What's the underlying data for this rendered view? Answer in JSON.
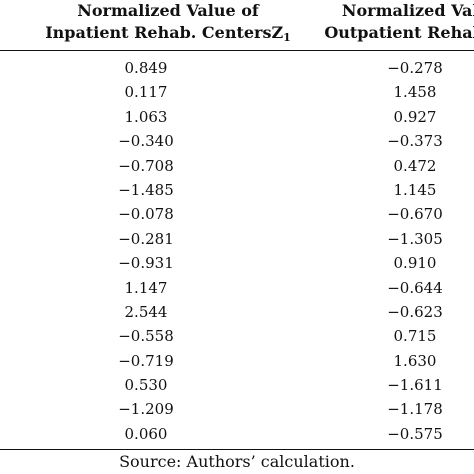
{
  "table": {
    "headers": [
      {
        "line1": "Normalized Value of",
        "line2": "Inpatient Rehab. Centers",
        "symbol": "Z",
        "subscript": "1"
      },
      {
        "line1": "Normalized Valu",
        "line2": "Outpatient Rehab. C",
        "symbol": "",
        "subscript": ""
      }
    ],
    "rows": [
      [
        "0.849",
        "−0.278"
      ],
      [
        "0.117",
        "1.458"
      ],
      [
        "1.063",
        "0.927"
      ],
      [
        "−0.340",
        "−0.373"
      ],
      [
        "−0.708",
        "0.472"
      ],
      [
        "−1.485",
        "1.145"
      ],
      [
        "−0.078",
        "−0.670"
      ],
      [
        "−0.281",
        "−1.305"
      ],
      [
        "−0.931",
        "0.910"
      ],
      [
        "1.147",
        "−0.644"
      ],
      [
        "2.544",
        "−0.623"
      ],
      [
        "−0.558",
        "0.715"
      ],
      [
        "−0.719",
        "1.630"
      ],
      [
        "0.530",
        "−1.611"
      ],
      [
        "−1.209",
        "−1.178"
      ],
      [
        "0.060",
        "−0.575"
      ]
    ]
  },
  "source_note": "Source: Authors’ calculation."
}
